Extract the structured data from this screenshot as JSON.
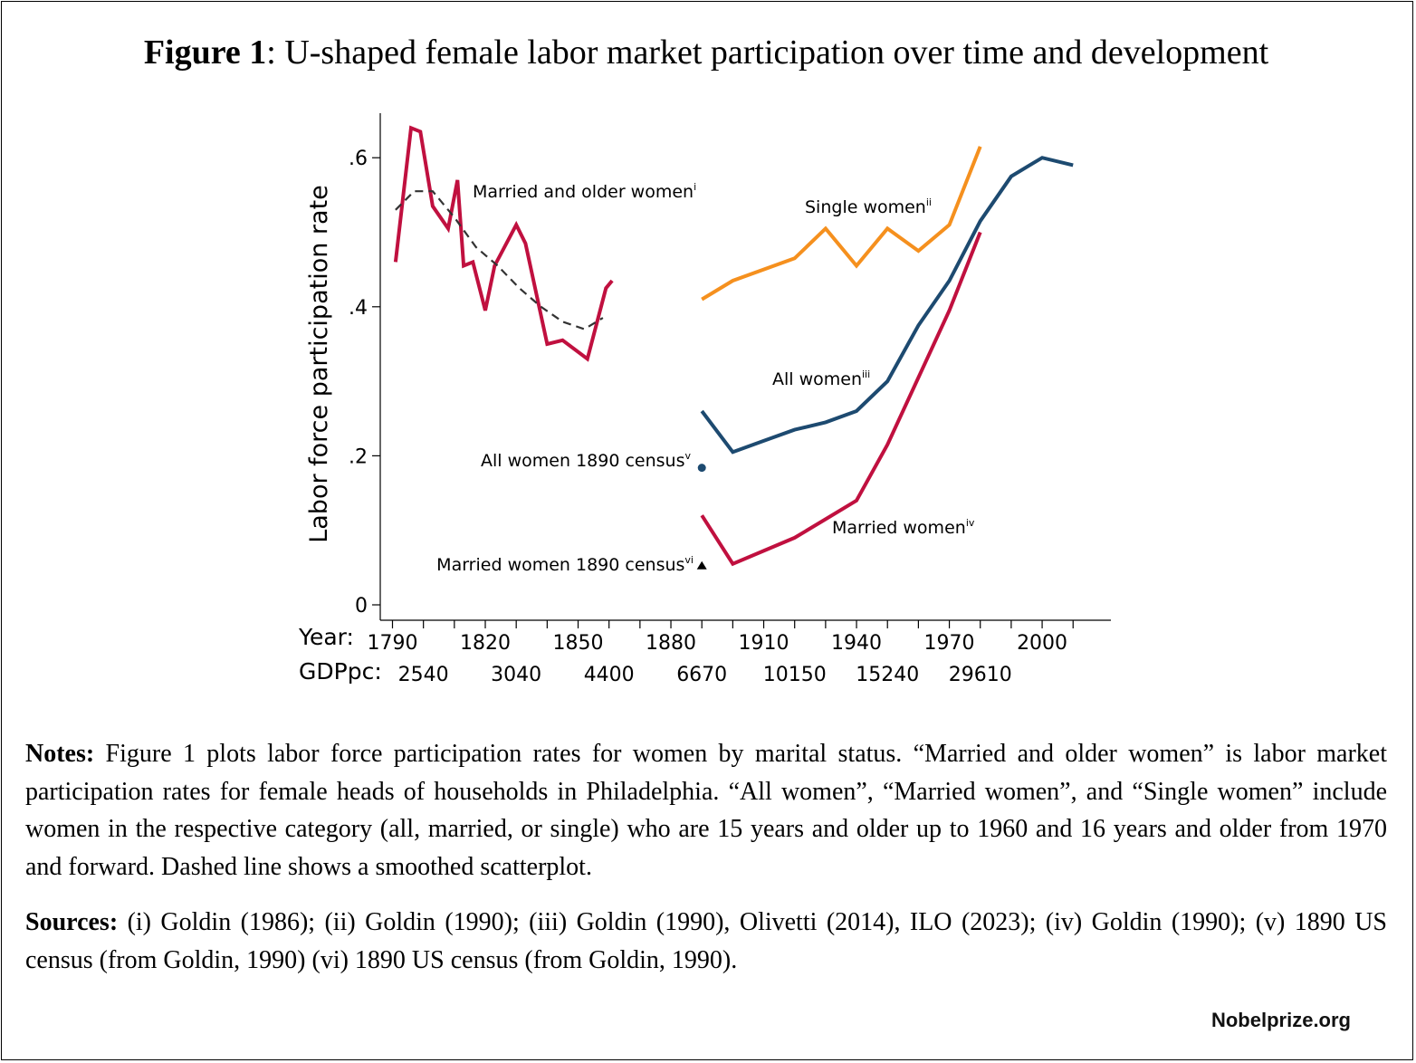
{
  "figure": {
    "title_bold": "Figure 1",
    "title_rest": ": U-shaped female labor market participation over time and development"
  },
  "chart_data": {
    "type": "line",
    "ylabel": "Labor force participation rate",
    "ylim": [
      0,
      0.65
    ],
    "yticks": [
      {
        "value": 0,
        "label": "0"
      },
      {
        "value": 0.2,
        "label": ".2"
      },
      {
        "value": 0.4,
        "label": ".4"
      },
      {
        "value": 0.6,
        "label": ".6"
      }
    ],
    "xlim": [
      1790,
      2010
    ],
    "x_row1_label": "Year:",
    "x_row2_label": "GDPpc:",
    "x_year_labels": [
      {
        "x": 1790,
        "label": "1790"
      },
      {
        "x": 1820,
        "label": "1820"
      },
      {
        "x": 1850,
        "label": "1850"
      },
      {
        "x": 1880,
        "label": "1880"
      },
      {
        "x": 1910,
        "label": "1910"
      },
      {
        "x": 1940,
        "label": "1940"
      },
      {
        "x": 1970,
        "label": "1970"
      },
      {
        "x": 2000,
        "label": "2000"
      }
    ],
    "x_gdp_labels": [
      {
        "x": 1800,
        "label": "2540"
      },
      {
        "x": 1830,
        "label": "3040"
      },
      {
        "x": 1860,
        "label": "4400"
      },
      {
        "x": 1890,
        "label": "6670"
      },
      {
        "x": 1920,
        "label": "10150"
      },
      {
        "x": 1950,
        "label": "15240"
      },
      {
        "x": 1980,
        "label": "29610"
      }
    ],
    "series": [
      {
        "name": "Married and older women",
        "sup": "i",
        "color": "#c0103f",
        "style": "solid",
        "points": [
          [
            1791,
            0.46
          ],
          [
            1796,
            0.64
          ],
          [
            1799,
            0.635
          ],
          [
            1803,
            0.535
          ],
          [
            1808,
            0.505
          ],
          [
            1811,
            0.57
          ],
          [
            1813,
            0.455
          ],
          [
            1816,
            0.46
          ],
          [
            1820,
            0.395
          ],
          [
            1823,
            0.455
          ],
          [
            1830,
            0.51
          ],
          [
            1833,
            0.485
          ],
          [
            1840,
            0.35
          ],
          [
            1845,
            0.355
          ],
          [
            1853,
            0.33
          ],
          [
            1859,
            0.425
          ],
          [
            1861,
            0.435
          ]
        ]
      },
      {
        "name": "",
        "color": "#333333",
        "style": "dashed",
        "points": [
          [
            1791,
            0.53
          ],
          [
            1797,
            0.555
          ],
          [
            1803,
            0.555
          ],
          [
            1810,
            0.52
          ],
          [
            1817,
            0.48
          ],
          [
            1824,
            0.455
          ],
          [
            1831,
            0.425
          ],
          [
            1838,
            0.4
          ],
          [
            1845,
            0.38
          ],
          [
            1852,
            0.37
          ],
          [
            1858,
            0.385
          ]
        ]
      },
      {
        "name": "Single women",
        "sup": "ii",
        "color": "#f5901e",
        "style": "solid",
        "points": [
          [
            1890,
            0.41
          ],
          [
            1900,
            0.435
          ],
          [
            1920,
            0.465
          ],
          [
            1930,
            0.505
          ],
          [
            1940,
            0.455
          ],
          [
            1950,
            0.505
          ],
          [
            1960,
            0.475
          ],
          [
            1970,
            0.51
          ],
          [
            1980,
            0.615
          ]
        ]
      },
      {
        "name": "All women",
        "sup": "iii",
        "color": "#1d4a70",
        "style": "solid",
        "points": [
          [
            1890,
            0.26
          ],
          [
            1900,
            0.205
          ],
          [
            1910,
            0.22
          ],
          [
            1920,
            0.235
          ],
          [
            1930,
            0.245
          ],
          [
            1940,
            0.26
          ],
          [
            1950,
            0.3
          ],
          [
            1960,
            0.375
          ],
          [
            1970,
            0.435
          ],
          [
            1980,
            0.515
          ],
          [
            1990,
            0.575
          ],
          [
            2000,
            0.6
          ],
          [
            2010,
            0.59
          ]
        ]
      },
      {
        "name": "Married women",
        "sup": "iv",
        "color": "#c0103f",
        "style": "solid",
        "points": [
          [
            1890,
            0.12
          ],
          [
            1900,
            0.055
          ],
          [
            1920,
            0.09
          ],
          [
            1930,
            0.115
          ],
          [
            1940,
            0.14
          ],
          [
            1950,
            0.215
          ],
          [
            1960,
            0.305
          ],
          [
            1970,
            0.395
          ],
          [
            1980,
            0.5
          ]
        ]
      }
    ],
    "points": [
      {
        "name": "All women 1890 census",
        "sup": "v",
        "x": 1890,
        "y": 0.19,
        "marker": "circle",
        "color": "#1d4a70"
      },
      {
        "name": "Married women 1890 census",
        "sup": "vi",
        "x": 1890,
        "y": 0.055,
        "marker": "triangle",
        "color": "#000000"
      }
    ]
  },
  "notes": {
    "notes_label": "Notes:",
    "notes_text": " Figure 1 plots labor force participation rates for women by marital status. “Married and older women” is labor market participation rates for female heads of households in Philadelphia. “All women”, “Married women”, and “Single women” include women in the respective category (all, married, or single) who are 15 years and older up to 1960 and 16 years and older from 1970 and forward. Dashed line shows a smoothed scatterplot.",
    "sources_label": "Sources:",
    "sources_text": " (i) Goldin (1986); (ii) Goldin (1990); (iii) Goldin (1990), Olivetti (2014), ILO (2023); (iv) Goldin (1990); (v) 1890 US census (from Goldin, 1990) (vi) 1890 US census (from Goldin, 1990)."
  },
  "footer": {
    "brand": "Nobelprize.org"
  }
}
